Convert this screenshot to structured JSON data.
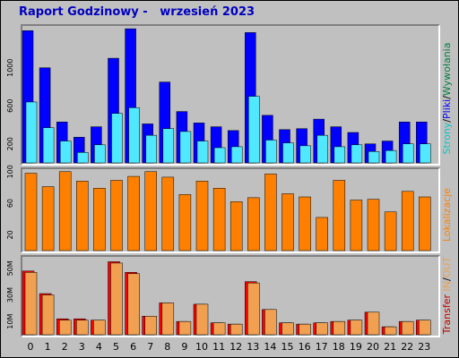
{
  "title": "Raport Godzinowy -   wrzesień 2023",
  "colors": {
    "wywolania": "#0000ff",
    "pliki": "#4fe8ff",
    "strony": "#00d0d0",
    "lokalizacje": "#ff8000",
    "transfer_in": "#ff0000",
    "transfer_out": "#f0a050",
    "separator": "#000000"
  },
  "chart_data": [
    {
      "type": "bar",
      "name_legend": [
        "Strony",
        "Pliki",
        "Wywołania"
      ],
      "categories": [
        "0",
        "1",
        "2",
        "3",
        "4",
        "5",
        "6",
        "7",
        "8",
        "9",
        "10",
        "11",
        "12",
        "13",
        "14",
        "15",
        "16",
        "17",
        "18",
        "19",
        "20",
        "21",
        "22",
        "23"
      ],
      "series": [
        {
          "name": "Wywołania",
          "values": [
            1390,
            1000,
            430,
            270,
            380,
            1100,
            1410,
            410,
            850,
            540,
            420,
            380,
            340,
            1370,
            500,
            350,
            360,
            460,
            380,
            320,
            200,
            230,
            430,
            430
          ]
        },
        {
          "name": "Pliki",
          "values": [
            640,
            370,
            230,
            110,
            190,
            520,
            580,
            290,
            360,
            330,
            230,
            160,
            170,
            700,
            240,
            210,
            180,
            290,
            170,
            190,
            120,
            130,
            200,
            200
          ]
        }
      ],
      "y_ticks": [
        "200",
        "600",
        "1000"
      ],
      "ylim": [
        0,
        1430
      ]
    },
    {
      "type": "bar",
      "name_legend": [
        "Lokalizacje"
      ],
      "categories": [
        "0",
        "1",
        "2",
        "3",
        "4",
        "5",
        "6",
        "7",
        "8",
        "9",
        "10",
        "11",
        "12",
        "13",
        "14",
        "15",
        "16",
        "17",
        "18",
        "19",
        "20",
        "21",
        "22",
        "23"
      ],
      "series": [
        {
          "name": "Lokalizacje",
          "values": [
            98,
            81,
            100,
            88,
            79,
            89,
            94,
            100,
            93,
            71,
            88,
            79,
            62,
            67,
            97,
            72,
            68,
            42,
            89,
            64,
            65,
            49,
            75,
            68
          ]
        }
      ],
      "y_ticks": [
        "20",
        "60",
        "100"
      ],
      "ylim": [
        0,
        102
      ]
    },
    {
      "type": "bar",
      "name_legend": [
        "Transfer",
        "IN",
        "OUT"
      ],
      "categories": [
        "0",
        "1",
        "2",
        "3",
        "4",
        "5",
        "6",
        "7",
        "8",
        "9",
        "10",
        "11",
        "12",
        "13",
        "14",
        "15",
        "16",
        "17",
        "18",
        "19",
        "20",
        "21",
        "22",
        "23"
      ],
      "series": [
        {
          "name": "IN",
          "values": [
            48,
            31,
            12,
            12,
            11,
            55,
            47,
            14,
            24,
            10,
            23,
            9,
            8,
            40,
            19,
            9,
            8,
            9,
            10,
            11,
            17,
            6,
            10,
            11
          ]
        },
        {
          "name": "OUT",
          "values": [
            47,
            30,
            11,
            11,
            11,
            54,
            46,
            14,
            24,
            10,
            23,
            9,
            8,
            39,
            19,
            9,
            8,
            9,
            10,
            11,
            17,
            6,
            10,
            11
          ]
        }
      ],
      "y_ticks": [
        "10M",
        "30M",
        "50M"
      ],
      "ylim": [
        0,
        58
      ]
    }
  ],
  "legends": {
    "top": [
      {
        "text": "Strony",
        "color": "#00c8c8"
      },
      {
        "text": "/",
        "color": "#000000"
      },
      {
        "text": "Pliki",
        "color": "#0000ff"
      },
      {
        "text": "/",
        "color": "#000000"
      },
      {
        "text": "Wywołania",
        "color": "#008040"
      }
    ],
    "middle": [
      {
        "text": "Lokalizacje",
        "color": "#ff8000"
      }
    ],
    "bottom": [
      {
        "text": "Transfer",
        "color": "#c00000"
      },
      {
        "text": " IN",
        "color": "#f0a050"
      },
      {
        "text": "/",
        "color": "#000000"
      },
      {
        "text": "OUT",
        "color": "#f0a050"
      }
    ]
  }
}
